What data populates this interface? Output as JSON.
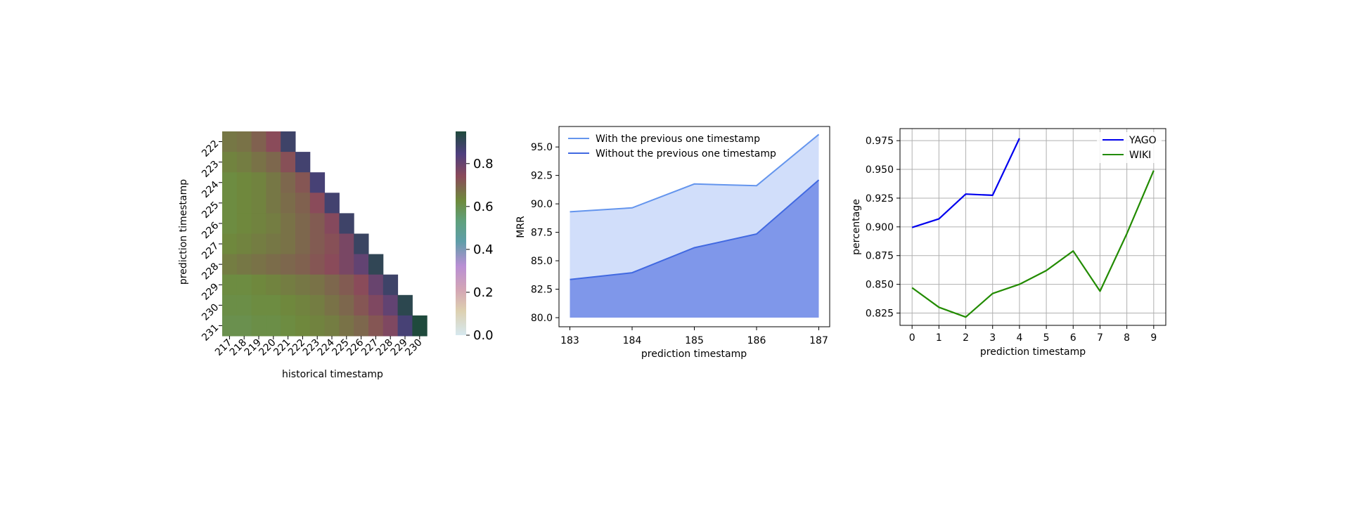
{
  "chart_data": [
    {
      "type": "heatmap",
      "xlabel": "historical timestamp",
      "ylabel": "prediction timestamp",
      "x_categories": [
        "217",
        "218",
        "219",
        "220",
        "221",
        "222",
        "223",
        "224",
        "225",
        "226",
        "227",
        "228",
        "229",
        "230"
      ],
      "y_categories": [
        "222",
        "223",
        "224",
        "225",
        "226",
        "227",
        "228",
        "229",
        "230",
        "231"
      ],
      "colorbar": {
        "ticks": [
          "0.0",
          "0.2",
          "0.4",
          "0.6",
          "0.8"
        ],
        "range": [
          0,
          0.95
        ]
      },
      "values": [
        [
          0.66,
          0.67,
          0.7,
          0.74,
          0.88,
          null,
          null,
          null,
          null,
          null,
          null,
          null,
          null,
          null
        ],
        [
          0.64,
          0.65,
          0.67,
          0.69,
          0.73,
          0.87,
          null,
          null,
          null,
          null,
          null,
          null,
          null,
          null
        ],
        [
          0.62,
          0.63,
          0.64,
          0.66,
          0.69,
          0.72,
          0.86,
          null,
          null,
          null,
          null,
          null,
          null,
          null
        ],
        [
          0.62,
          0.63,
          0.64,
          0.66,
          0.68,
          0.7,
          0.74,
          0.87,
          null,
          null,
          null,
          null,
          null,
          null
        ],
        [
          0.62,
          0.63,
          0.64,
          0.65,
          0.67,
          0.69,
          0.71,
          0.75,
          0.88,
          null,
          null,
          null,
          null,
          null
        ],
        [
          0.63,
          0.64,
          0.65,
          0.66,
          0.67,
          0.69,
          0.71,
          0.73,
          0.77,
          0.89,
          null,
          null,
          null,
          null
        ],
        [
          0.65,
          0.66,
          0.67,
          0.68,
          0.69,
          0.7,
          0.72,
          0.74,
          0.77,
          0.81,
          0.91,
          null,
          null,
          null
        ],
        [
          0.62,
          0.62,
          0.63,
          0.64,
          0.65,
          0.66,
          0.67,
          0.69,
          0.71,
          0.74,
          0.8,
          0.88,
          null,
          null
        ],
        [
          0.61,
          0.61,
          0.62,
          0.62,
          0.63,
          0.64,
          0.65,
          0.67,
          0.69,
          0.72,
          0.76,
          0.81,
          0.92,
          null
        ],
        [
          0.6,
          0.6,
          0.61,
          0.61,
          0.62,
          0.63,
          0.64,
          0.65,
          0.67,
          0.69,
          0.72,
          0.76,
          0.86,
          0.96
        ]
      ]
    },
    {
      "type": "area",
      "xlabel": "prediction timestamp",
      "ylabel": "MRR",
      "x": [
        183,
        184,
        185,
        186,
        187
      ],
      "ylim": [
        79.2,
        96.8
      ],
      "yticks": [
        80.0,
        82.5,
        85.0,
        87.5,
        90.0,
        92.5,
        95.0
      ],
      "baseline": 80.0,
      "legend_position": "upper-left",
      "series": [
        {
          "name": "With the previous one timestamp",
          "values": [
            89.3,
            89.65,
            91.75,
            91.6,
            96.1
          ],
          "color": "#6495ed",
          "fill": "#d1defa"
        },
        {
          "name": "Without the previous one timestamp",
          "values": [
            83.35,
            83.95,
            86.15,
            87.35,
            92.1
          ],
          "color": "#4169e1",
          "fill": "#7f97ea"
        }
      ]
    },
    {
      "type": "line",
      "xlabel": "prediction timestamp",
      "ylabel": "percentage",
      "x": [
        0,
        1,
        2,
        3,
        4,
        5,
        6,
        7,
        8,
        9
      ],
      "xlim": [
        -0.45,
        9.45
      ],
      "ylim": [
        0.8143,
        0.9855
      ],
      "yticks": [
        0.825,
        0.85,
        0.875,
        0.9,
        0.925,
        0.95,
        0.975
      ],
      "grid": true,
      "legend_position": "upper-right",
      "series": [
        {
          "name": "YAGO",
          "x": [
            0,
            1,
            2,
            3,
            4
          ],
          "values": [
            0.8995,
            0.907,
            0.9285,
            0.9275,
            0.977
          ],
          "color": "#0000ee"
        },
        {
          "name": "WIKI",
          "x": [
            0,
            1,
            2,
            3,
            4,
            5,
            6,
            7,
            8,
            9
          ],
          "values": [
            0.847,
            0.83,
            0.8215,
            0.842,
            0.85,
            0.862,
            0.879,
            0.844,
            0.894,
            0.949
          ],
          "color": "#228b00"
        }
      ]
    }
  ]
}
